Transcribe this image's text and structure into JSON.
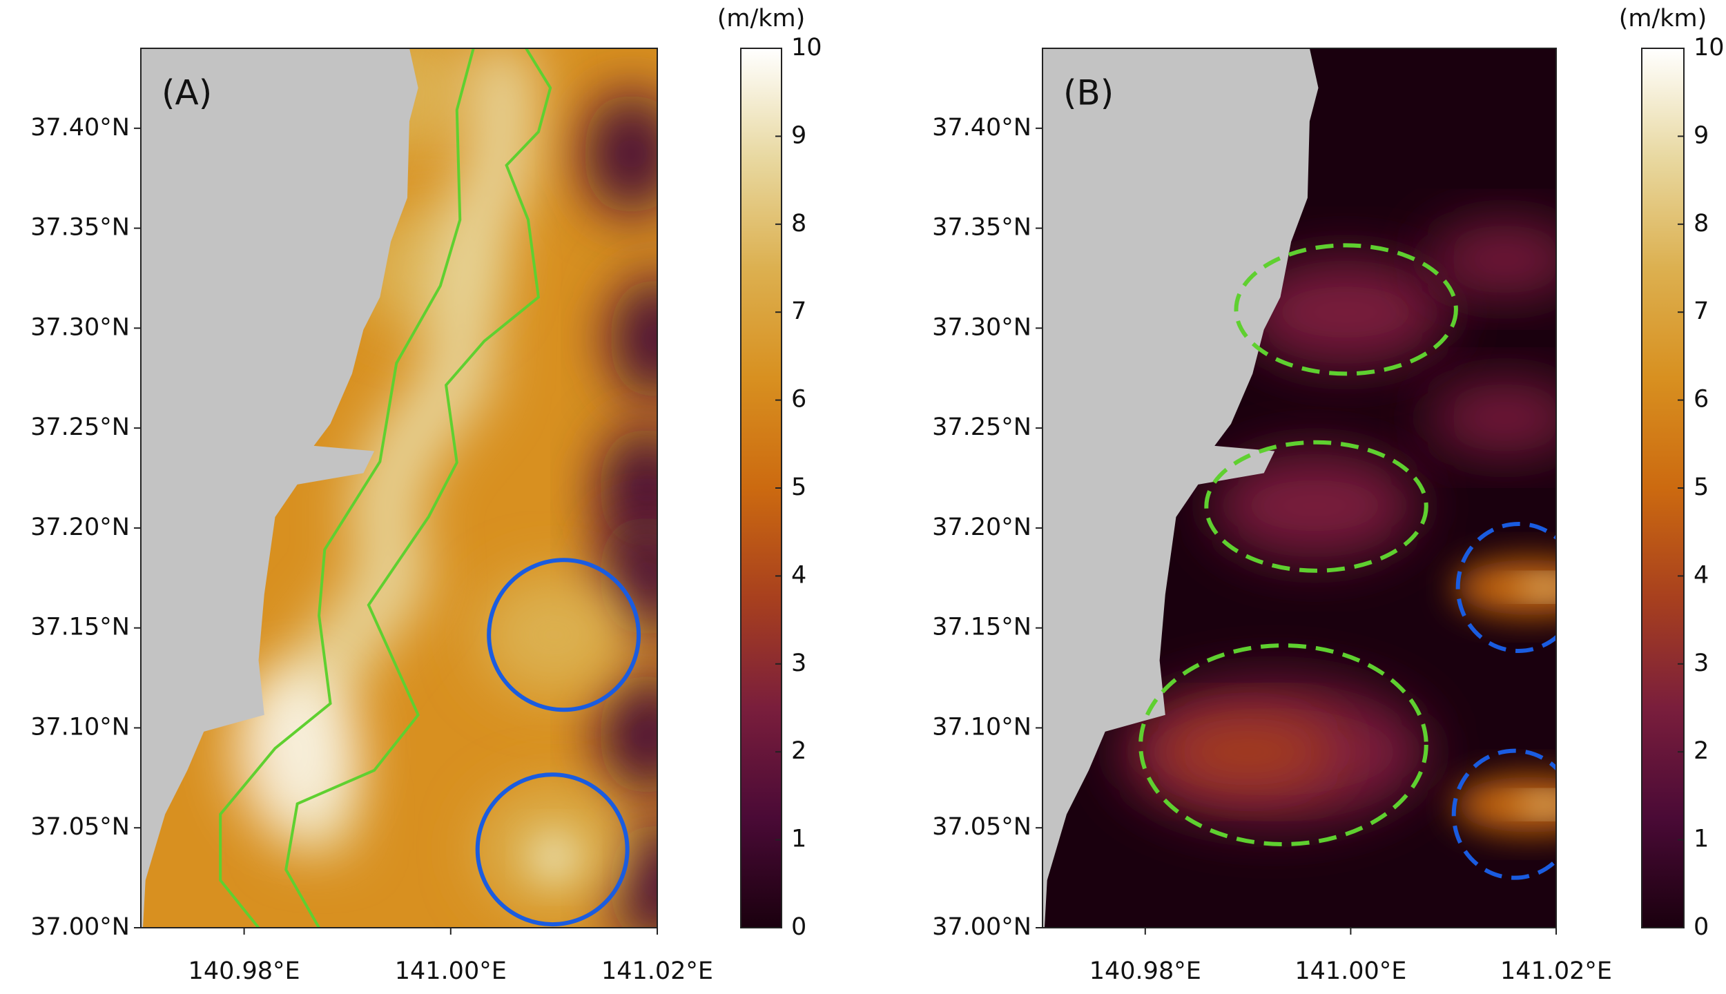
{
  "chart_data": [
    {
      "type": "heatmap",
      "panel_label": "(A)",
      "xlim": [
        140.97,
        141.02
      ],
      "ylim": [
        37.0,
        37.44
      ],
      "xticks": [
        {
          "value": 140.98,
          "label": "140.98°E"
        },
        {
          "value": 141.0,
          "label": "141.00°E"
        },
        {
          "value": 141.02,
          "label": "141.02°E"
        }
      ],
      "yticks": [
        {
          "value": 37.0,
          "label": "37.00°N"
        },
        {
          "value": 37.05,
          "label": "37.05°N"
        },
        {
          "value": 37.1,
          "label": "37.10°N"
        },
        {
          "value": 37.15,
          "label": "37.15°N"
        },
        {
          "value": 37.2,
          "label": "37.20°N"
        },
        {
          "value": 37.25,
          "label": "37.25°N"
        },
        {
          "value": 37.3,
          "label": "37.30°N"
        },
        {
          "value": 37.35,
          "label": "37.35°N"
        },
        {
          "value": 37.4,
          "label": "37.40°N"
        }
      ],
      "colorbar": {
        "label": "(m/km)",
        "clim": [
          0,
          10
        ],
        "ticks": [
          0,
          1,
          2,
          3,
          4,
          5,
          6,
          7,
          8,
          9,
          10
        ],
        "colormap": [
          "#1a000e",
          "#4a0a36",
          "#7a1e3c",
          "#a8401e",
          "#cc6a10",
          "#d89020",
          "#dcb050",
          "#e8d8a0",
          "#ffffff"
        ]
      }
    },
    {
      "type": "heatmap",
      "panel_label": "(B)",
      "xlim": [
        140.97,
        141.02
      ],
      "ylim": [
        37.0,
        37.44
      ],
      "xticks": [
        {
          "value": 140.98,
          "label": "140.98°E"
        },
        {
          "value": 141.0,
          "label": "141.00°E"
        },
        {
          "value": 141.02,
          "label": "141.02°E"
        }
      ],
      "yticks": [
        {
          "value": 37.0,
          "label": "37.00°N"
        },
        {
          "value": 37.05,
          "label": "37.05°N"
        },
        {
          "value": 37.1,
          "label": "37.10°N"
        },
        {
          "value": 37.15,
          "label": "37.15°N"
        },
        {
          "value": 37.2,
          "label": "37.20°N"
        },
        {
          "value": 37.25,
          "label": "37.25°N"
        },
        {
          "value": 37.3,
          "label": "37.30°N"
        },
        {
          "value": 37.35,
          "label": "37.35°N"
        },
        {
          "value": 37.4,
          "label": "37.40°N"
        }
      ],
      "colorbar": {
        "label": "(m/km)",
        "clim": [
          0,
          10
        ],
        "ticks": [
          0,
          1,
          2,
          3,
          4,
          5,
          6,
          7,
          8,
          9,
          10
        ],
        "colormap": [
          "#1a000e",
          "#4a0a36",
          "#7a1e3c",
          "#a8401e",
          "#cc6a10",
          "#d89020",
          "#dcb050",
          "#e8d8a0",
          "#ffffff"
        ]
      }
    }
  ]
}
